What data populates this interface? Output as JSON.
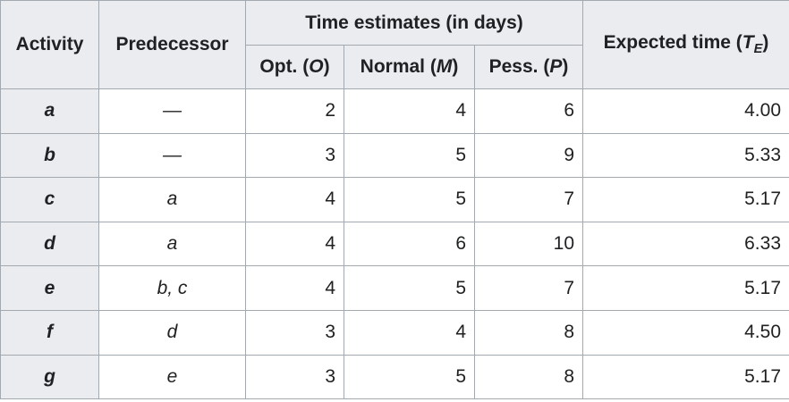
{
  "headers": {
    "activity": "Activity",
    "predecessor": "Predecessor",
    "time_estimates": "Time estimates (in days)",
    "opt_prefix": "Opt. (",
    "opt_var": "O",
    "normal_prefix": "Normal (",
    "normal_var": "M",
    "pess_prefix": "Pess. (",
    "pess_var": "P",
    "close_paren": ")",
    "expected_prefix": "Expected time (",
    "expected_var": "T",
    "expected_sub": "E"
  },
  "rows": [
    {
      "activity": "a",
      "predecessor": "—",
      "optimistic": "2",
      "normal": "4",
      "pessimistic": "6",
      "expected": "4.00"
    },
    {
      "activity": "b",
      "predecessor": "—",
      "optimistic": "3",
      "normal": "5",
      "pessimistic": "9",
      "expected": "5.33"
    },
    {
      "activity": "c",
      "predecessor": "a",
      "optimistic": "4",
      "normal": "5",
      "pessimistic": "7",
      "expected": "5.17"
    },
    {
      "activity": "d",
      "predecessor": "a",
      "optimistic": "4",
      "normal": "6",
      "pessimistic": "10",
      "expected": "6.33"
    },
    {
      "activity": "e",
      "predecessor": "b, c",
      "optimistic": "4",
      "normal": "5",
      "pessimistic": "7",
      "expected": "5.17"
    },
    {
      "activity": "f",
      "predecessor": "d",
      "optimistic": "3",
      "normal": "4",
      "pessimistic": "8",
      "expected": "4.50"
    },
    {
      "activity": "g",
      "predecessor": "e",
      "optimistic": "3",
      "normal": "5",
      "pessimistic": "8",
      "expected": "5.17"
    }
  ]
}
